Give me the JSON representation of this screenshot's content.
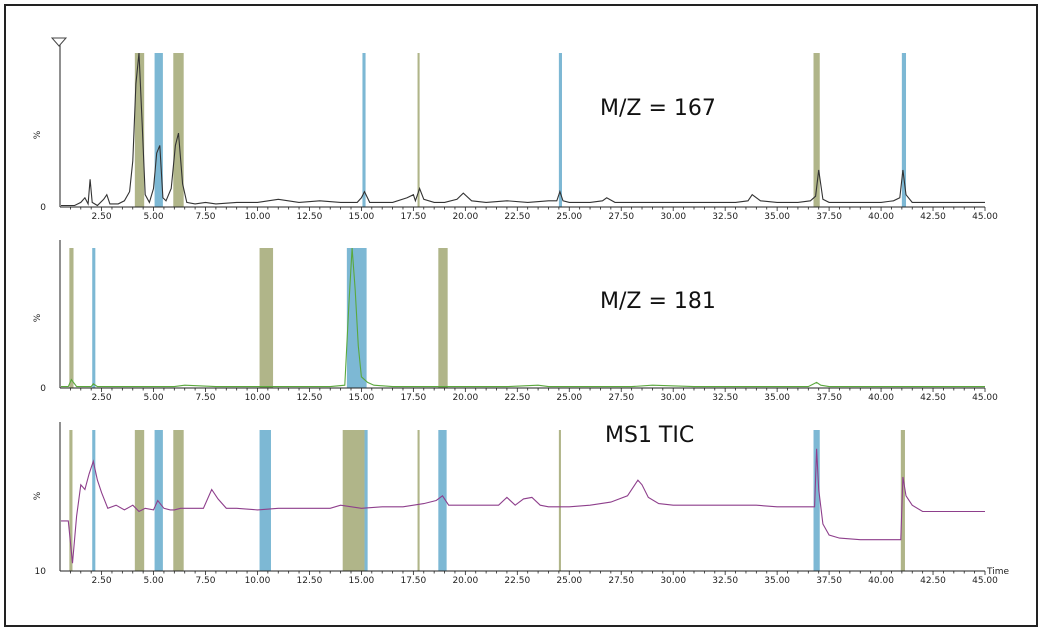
{
  "colors": {
    "olive": "#a7ad7c",
    "blue": "#6fb0cf",
    "trace_dark": "#333333",
    "trace_green": "#5aa83c",
    "trace_magenta": "#8e3f8c",
    "axis": "#222222",
    "frame": "#222222"
  },
  "chart_data": [
    {
      "type": "line",
      "title": "M/Z = 167",
      "xlabel": "",
      "ylabel": "%",
      "xlim": [
        0.5,
        45
      ],
      "ylim": [
        0,
        100
      ],
      "y_ticks": [
        "0"
      ],
      "x_ticks": [
        "2.50",
        "5.00",
        "7.50",
        "10.00",
        "12.50",
        "15.00",
        "17.50",
        "20.00",
        "22.50",
        "25.00",
        "27.50",
        "30.00",
        "32.50",
        "35.00",
        "37.50",
        "40.00",
        "42.50",
        "45.00"
      ],
      "highlight_bands": [
        {
          "x0": 4.1,
          "x1": 4.55,
          "color": "olive"
        },
        {
          "x0": 5.05,
          "x1": 5.45,
          "color": "blue"
        },
        {
          "x0": 5.95,
          "x1": 6.45,
          "color": "olive"
        },
        {
          "x0": 15.05,
          "x1": 15.2,
          "color": "blue"
        },
        {
          "x0": 17.7,
          "x1": 17.8,
          "color": "olive"
        },
        {
          "x0": 24.5,
          "x1": 24.65,
          "color": "blue"
        },
        {
          "x0": 36.75,
          "x1": 37.05,
          "color": "olive"
        },
        {
          "x0": 41.0,
          "x1": 41.2,
          "color": "blue"
        }
      ],
      "series": [
        {
          "color": "trace_dark",
          "x": [
            0.55,
            1.2,
            1.5,
            1.7,
            1.85,
            1.95,
            2.05,
            2.3,
            2.6,
            2.75,
            2.9,
            3.3,
            3.6,
            3.85,
            4.0,
            4.15,
            4.3,
            4.45,
            4.6,
            4.8,
            5.0,
            5.15,
            5.3,
            5.45,
            5.6,
            5.85,
            6.05,
            6.2,
            6.4,
            6.6,
            7.0,
            7.5,
            8.0,
            9.0,
            10.0,
            11.0,
            12.0,
            13.0,
            14.0,
            14.8,
            15.0,
            15.15,
            15.4,
            15.8,
            16.5,
            17.2,
            17.5,
            17.6,
            17.8,
            18.0,
            18.5,
            19.0,
            19.6,
            19.9,
            20.3,
            21.0,
            22.0,
            23.0,
            24.0,
            24.4,
            24.55,
            24.7,
            25.0,
            26.0,
            26.6,
            26.8,
            27.2,
            28.0,
            29.0,
            30.0,
            31.0,
            32.0,
            33.0,
            33.6,
            33.8,
            34.2,
            35.0,
            36.0,
            36.6,
            36.85,
            37.0,
            37.2,
            37.5,
            38.0,
            39.0,
            40.0,
            40.6,
            40.9,
            41.05,
            41.2,
            41.5,
            42.0,
            43.0,
            44.0,
            45.0
          ],
          "y": [
            1,
            1,
            3,
            6,
            2,
            18,
            3,
            1,
            5,
            8,
            2,
            2,
            4,
            10,
            30,
            80,
            100,
            55,
            8,
            3,
            12,
            35,
            40,
            6,
            4,
            12,
            40,
            48,
            15,
            3,
            2,
            3,
            2,
            3,
            3,
            5,
            3,
            4,
            3,
            3,
            6,
            10,
            3,
            3,
            3,
            6,
            8,
            4,
            12,
            5,
            3,
            3,
            5,
            9,
            4,
            3,
            4,
            3,
            4,
            4,
            10,
            4,
            3,
            3,
            4,
            6,
            3,
            3,
            3,
            3,
            3,
            3,
            3,
            4,
            8,
            4,
            3,
            3,
            4,
            7,
            24,
            5,
            3,
            3,
            3,
            3,
            4,
            6,
            24,
            8,
            3,
            3,
            3,
            3,
            3
          ]
        }
      ]
    },
    {
      "type": "line",
      "title": "M/Z = 181",
      "xlabel": "",
      "ylabel": "%",
      "xlim": [
        0.5,
        45
      ],
      "ylim": [
        0,
        100
      ],
      "y_ticks": [
        "0"
      ],
      "x_ticks": [
        "2.50",
        "5.00",
        "7.50",
        "10.00",
        "12.50",
        "15.00",
        "17.50",
        "20.00",
        "22.50",
        "25.00",
        "27.50",
        "30.00",
        "32.50",
        "35.00",
        "37.50",
        "40.00",
        "42.50",
        "45.00"
      ],
      "highlight_bands": [
        {
          "x0": 0.95,
          "x1": 1.15,
          "color": "olive"
        },
        {
          "x0": 2.05,
          "x1": 2.2,
          "color": "blue"
        },
        {
          "x0": 10.1,
          "x1": 10.75,
          "color": "olive"
        },
        {
          "x0": 14.3,
          "x1": 15.25,
          "color": "blue"
        },
        {
          "x0": 18.7,
          "x1": 19.15,
          "color": "olive"
        }
      ],
      "series": [
        {
          "color": "trace_green",
          "x": [
            0.55,
            0.9,
            1.05,
            1.3,
            2.0,
            2.1,
            2.3,
            3.0,
            5.0,
            6.0,
            6.5,
            8.0,
            10.0,
            12.0,
            13.5,
            14.2,
            14.4,
            14.55,
            14.7,
            14.85,
            15.0,
            15.3,
            15.6,
            16.5,
            18.0,
            20.0,
            22.0,
            23.5,
            24.0,
            24.6,
            26.0,
            28.0,
            29.0,
            31.0,
            33.0,
            35.0,
            36.5,
            36.9,
            37.1,
            37.5,
            38.5,
            40.0,
            42.0,
            44.0,
            45.0
          ],
          "y": [
            1,
            1,
            6,
            1,
            1,
            3,
            1,
            1,
            1,
            1,
            2,
            1,
            1,
            1,
            1,
            2,
            60,
            100,
            70,
            30,
            8,
            4,
            2,
            1,
            1,
            1,
            1,
            2,
            1,
            1,
            1,
            1,
            2,
            1,
            1,
            1,
            1,
            4,
            2,
            1,
            1,
            1,
            1,
            1,
            1
          ]
        }
      ]
    },
    {
      "type": "line",
      "title": "MS1 TIC",
      "xlabel": "Time",
      "ylabel": "%",
      "xlim": [
        0.5,
        45
      ],
      "ylim": [
        10,
        100
      ],
      "y_ticks": [
        "10"
      ],
      "x_ticks": [
        "2.50",
        "5.00",
        "7.50",
        "10.00",
        "12.50",
        "15.00",
        "17.50",
        "20.00",
        "22.50",
        "25.00",
        "27.50",
        "30.00",
        "32.50",
        "35.00",
        "37.50",
        "40.00",
        "42.50",
        "45.00"
      ],
      "highlight_bands": [
        {
          "x0": 0.95,
          "x1": 1.1,
          "color": "olive"
        },
        {
          "x0": 2.05,
          "x1": 2.2,
          "color": "blue"
        },
        {
          "x0": 4.1,
          "x1": 4.55,
          "color": "olive"
        },
        {
          "x0": 5.05,
          "x1": 5.45,
          "color": "blue"
        },
        {
          "x0": 5.95,
          "x1": 6.45,
          "color": "olive"
        },
        {
          "x0": 10.1,
          "x1": 10.65,
          "color": "blue"
        },
        {
          "x0": 14.1,
          "x1": 15.15,
          "color": "olive"
        },
        {
          "x0": 15.15,
          "x1": 15.3,
          "color": "blue"
        },
        {
          "x0": 17.7,
          "x1": 17.8,
          "color": "olive"
        },
        {
          "x0": 18.7,
          "x1": 19.1,
          "color": "blue"
        },
        {
          "x0": 24.5,
          "x1": 24.6,
          "color": "olive"
        },
        {
          "x0": 36.75,
          "x1": 37.05,
          "color": "blue"
        },
        {
          "x0": 40.95,
          "x1": 41.15,
          "color": "olive"
        }
      ],
      "series": [
        {
          "color": "trace_magenta",
          "x": [
            0.55,
            0.9,
            1.1,
            1.3,
            1.5,
            1.7,
            1.9,
            2.1,
            2.3,
            2.5,
            2.8,
            3.2,
            3.6,
            4.0,
            4.3,
            4.6,
            5.0,
            5.2,
            5.5,
            5.8,
            6.0,
            6.3,
            6.8,
            7.4,
            7.8,
            8.1,
            8.5,
            9.0,
            10.0,
            11.0,
            12.0,
            13.0,
            13.5,
            14.0,
            15.0,
            16.0,
            17.0,
            18.0,
            18.6,
            18.9,
            19.2,
            20.0,
            21.0,
            21.6,
            22.0,
            22.4,
            22.8,
            23.2,
            23.6,
            24.0,
            25.0,
            26.0,
            27.0,
            27.8,
            28.3,
            28.5,
            28.8,
            29.3,
            30.0,
            31.0,
            32.0,
            33.0,
            34.0,
            35.0,
            36.0,
            36.8,
            36.9,
            37.0,
            37.2,
            37.5,
            38.0,
            39.0,
            40.0,
            40.95,
            41.05,
            41.2,
            41.5,
            42.0,
            43.0,
            44.0,
            45.0
          ],
          "y": [
            42,
            42,
            15,
            45,
            65,
            62,
            72,
            80,
            68,
            60,
            50,
            52,
            49,
            52,
            48,
            50,
            49,
            55,
            50,
            49,
            49,
            50,
            50,
            50,
            62,
            56,
            50,
            50,
            49,
            50,
            50,
            50,
            50,
            52,
            50,
            51,
            51,
            53,
            55,
            58,
            52,
            52,
            52,
            52,
            57,
            52,
            56,
            57,
            52,
            51,
            51,
            52,
            54,
            58,
            68,
            65,
            57,
            53,
            52,
            52,
            52,
            52,
            52,
            51,
            51,
            51,
            88,
            62,
            40,
            33,
            31,
            30,
            30,
            30,
            70,
            58,
            52,
            48,
            48,
            48,
            48
          ]
        }
      ]
    }
  ]
}
